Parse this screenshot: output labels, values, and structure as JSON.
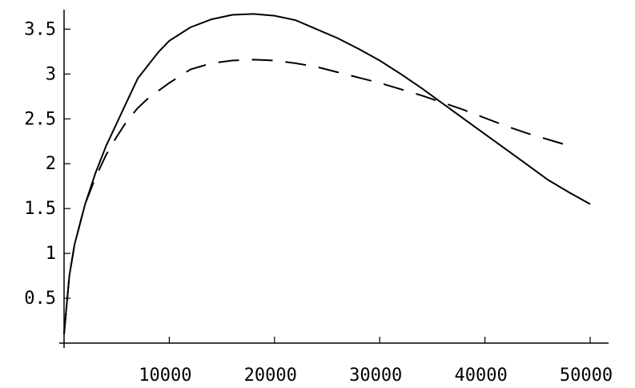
{
  "chart_data": {
    "type": "line",
    "title": "",
    "xlabel": "",
    "ylabel": "",
    "xlim": [
      0,
      50000
    ],
    "ylim": [
      0,
      3.7
    ],
    "grid": false,
    "x_ticks": [
      10000,
      20000,
      30000,
      40000,
      50000
    ],
    "x_tick_labels": [
      "10000",
      "20000",
      "30000",
      "40000",
      "50000"
    ],
    "y_ticks": [
      0.5,
      1,
      1.5,
      2,
      2.5,
      3,
      3.5
    ],
    "y_tick_labels": [
      "0.5",
      "1",
      "1.5",
      "2",
      "2.5",
      "3",
      "3.5"
    ],
    "series": [
      {
        "style": "solid",
        "color": "#000000",
        "points": [
          [
            0,
            0.1
          ],
          [
            500,
            0.75
          ],
          [
            1000,
            1.1
          ],
          [
            2000,
            1.55
          ],
          [
            3000,
            1.9
          ],
          [
            4000,
            2.2
          ],
          [
            5000,
            2.45
          ],
          [
            6000,
            2.7
          ],
          [
            7000,
            2.95
          ],
          [
            8000,
            3.1
          ],
          [
            9000,
            3.25
          ],
          [
            10000,
            3.37
          ],
          [
            12000,
            3.52
          ],
          [
            14000,
            3.61
          ],
          [
            16000,
            3.66
          ],
          [
            18000,
            3.67
          ],
          [
            20000,
            3.65
          ],
          [
            22000,
            3.6
          ],
          [
            24000,
            3.5
          ],
          [
            26000,
            3.4
          ],
          [
            28000,
            3.28
          ],
          [
            30000,
            3.15
          ],
          [
            32000,
            3.0
          ],
          [
            34000,
            2.84
          ],
          [
            36000,
            2.67
          ],
          [
            38000,
            2.5
          ],
          [
            40000,
            2.33
          ],
          [
            42000,
            2.16
          ],
          [
            44000,
            1.99
          ],
          [
            46000,
            1.82
          ],
          [
            48000,
            1.68
          ],
          [
            50000,
            1.55
          ]
        ]
      },
      {
        "style": "dashed",
        "color": "#000000",
        "points": [
          [
            0,
            0.1
          ],
          [
            500,
            0.75
          ],
          [
            1000,
            1.1
          ],
          [
            2000,
            1.55
          ],
          [
            3000,
            1.85
          ],
          [
            4000,
            2.1
          ],
          [
            5000,
            2.3
          ],
          [
            6000,
            2.48
          ],
          [
            7000,
            2.62
          ],
          [
            8000,
            2.73
          ],
          [
            10000,
            2.9
          ],
          [
            12000,
            3.05
          ],
          [
            14000,
            3.12
          ],
          [
            16000,
            3.15
          ],
          [
            18000,
            3.16
          ],
          [
            20000,
            3.15
          ],
          [
            22000,
            3.12
          ],
          [
            24000,
            3.08
          ],
          [
            26000,
            3.02
          ],
          [
            28000,
            2.96
          ],
          [
            30000,
            2.9
          ],
          [
            32000,
            2.83
          ],
          [
            34000,
            2.76
          ],
          [
            36000,
            2.68
          ],
          [
            38000,
            2.6
          ],
          [
            40000,
            2.51
          ],
          [
            42000,
            2.42
          ],
          [
            44000,
            2.34
          ],
          [
            46000,
            2.27
          ],
          [
            48000,
            2.2
          ]
        ]
      }
    ]
  }
}
